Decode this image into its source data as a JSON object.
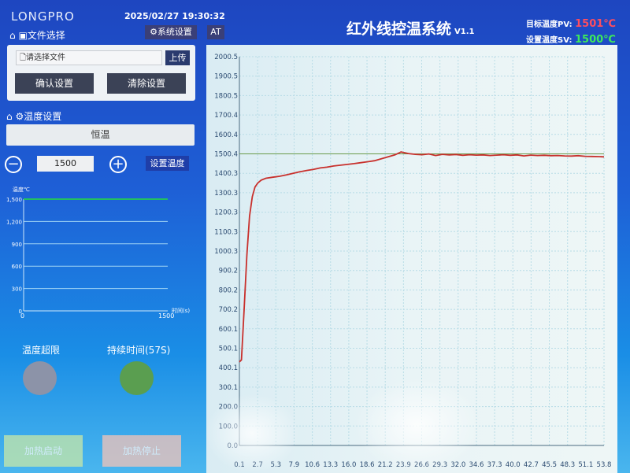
{
  "header": {
    "logo": "LONGPRO",
    "datetime": "2025/02/27 19:30:32",
    "title": "红外线控温系统",
    "version": "V1.1",
    "pv_label": "目标温度PV:",
    "pv_value": "1501℃",
    "sv_label": "设置温度SV:",
    "sv_value": "1500℃",
    "system_settings": "系统设置",
    "at": "AT"
  },
  "file_section": {
    "title": "文件选择",
    "placeholder": "请选择文件",
    "upload": "上传",
    "confirm": "确认设置",
    "clear": "清除设置"
  },
  "temp_section": {
    "title": "温度设置",
    "mode": "恒温",
    "value": "1500",
    "set_button": "设置温度"
  },
  "mini_chart": {
    "ylabel": "温度℃",
    "xlabel": "时间(s)",
    "y_ticks": [
      "0",
      "300",
      "600",
      "900",
      "1,200",
      "1,500"
    ],
    "x_ticks": [
      "0",
      "1500"
    ],
    "ylim": [
      0,
      1500
    ],
    "xlim": [
      0,
      1500
    ],
    "setpoint": 1500,
    "line_color": "#22c060"
  },
  "indicators": {
    "over_limit": "温度超限",
    "duration": "持续时间(57S)",
    "over_limit_color": "#8c93a8",
    "duration_color": "#5a9e50"
  },
  "buttons": {
    "start": "加热启动",
    "stop": "加热停止"
  },
  "colors": {
    "curve": "#c8302c",
    "setpoint_line": "#6a9a4a"
  },
  "chart_data": {
    "type": "line",
    "title": "",
    "xlabel": "",
    "ylabel": "",
    "xlim": [
      0.1,
      53.8
    ],
    "ylim": [
      0.0,
      2000.5
    ],
    "grid": true,
    "y_ticks": [
      "0.0",
      "100.0",
      "200.0",
      "300.1",
      "400.1",
      "500.1",
      "600.1",
      "700.2",
      "800.2",
      "900.2",
      "1000.3",
      "1100.3",
      "1200.3",
      "1300.3",
      "1400.3",
      "1500.4",
      "1600.4",
      "1700.4",
      "1800.5",
      "1900.5",
      "2000.5"
    ],
    "x_ticks": [
      "0.1",
      "2.7",
      "5.3",
      "7.9",
      "10.6",
      "13.3",
      "16.0",
      "18.6",
      "21.2",
      "23.9",
      "26.6",
      "29.3",
      "32.0",
      "34.6",
      "37.3",
      "40.0",
      "42.7",
      "45.5",
      "48.3",
      "51.1",
      "53.8"
    ],
    "setpoint": 1500.4,
    "series": [
      {
        "x": [
          0.1,
          0.4,
          0.8,
          1.2,
          1.6,
          2.0,
          2.4,
          2.8,
          3.3,
          4,
          5,
          6,
          7,
          8,
          9,
          10,
          11,
          12,
          13,
          14,
          15,
          16,
          17,
          18,
          19,
          20,
          21,
          22,
          23,
          23.9,
          25,
          26,
          27,
          28,
          29,
          30,
          31,
          32,
          33,
          34,
          35,
          36,
          37,
          38,
          39,
          40,
          41,
          42,
          43,
          44,
          45,
          46,
          47,
          48,
          49,
          50,
          51,
          52,
          53,
          53.8
        ],
        "y": [
          430,
          440,
          700,
          980,
          1180,
          1280,
          1330,
          1350,
          1365,
          1375,
          1380,
          1385,
          1392,
          1400,
          1408,
          1415,
          1420,
          1428,
          1432,
          1438,
          1442,
          1446,
          1450,
          1455,
          1460,
          1465,
          1475,
          1485,
          1495,
          1510,
          1502,
          1498,
          1496,
          1500,
          1492,
          1498,
          1495,
          1497,
          1493,
          1496,
          1494,
          1495,
          1492,
          1494,
          1496,
          1493,
          1495,
          1490,
          1494,
          1492,
          1493,
          1491,
          1492,
          1490,
          1489,
          1491,
          1488,
          1487,
          1486,
          1485
        ]
      }
    ]
  }
}
